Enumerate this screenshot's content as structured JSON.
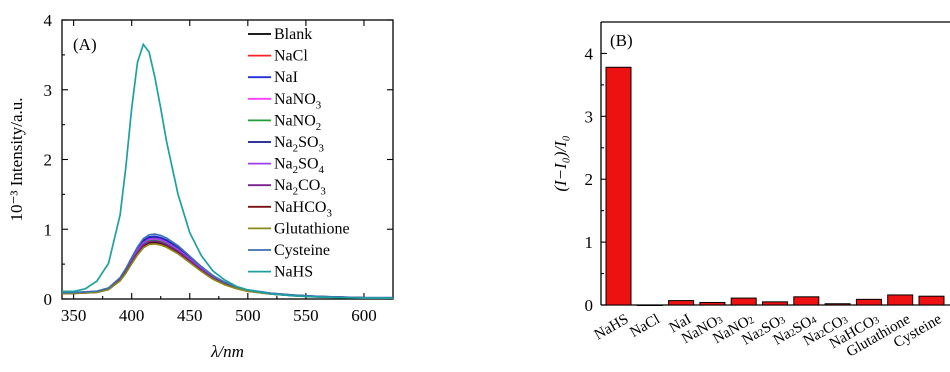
{
  "chart_data": [
    {
      "type": "line",
      "panel_label": "(A)",
      "xlabel": "λ/nm",
      "ylabel": "10⁻³ Intensity/a.u.",
      "xlim": [
        340,
        625
      ],
      "ylim": [
        0,
        4
      ],
      "xticks": [
        350,
        400,
        450,
        500,
        550,
        600
      ],
      "yticks": [
        0,
        1,
        2,
        3,
        4
      ],
      "legend_position": "top-right",
      "x": [
        340,
        350,
        360,
        370,
        380,
        390,
        395,
        400,
        405,
        410,
        415,
        420,
        425,
        430,
        440,
        450,
        460,
        470,
        480,
        490,
        500,
        520,
        540,
        560,
        580,
        600,
        625
      ],
      "shape": [
        0.1,
        0.1,
        0.11,
        0.12,
        0.17,
        0.33,
        0.47,
        0.64,
        0.8,
        0.93,
        0.99,
        1.0,
        0.98,
        0.94,
        0.82,
        0.66,
        0.5,
        0.36,
        0.26,
        0.19,
        0.14,
        0.09,
        0.06,
        0.04,
        0.03,
        0.02,
        0.02
      ],
      "nahs_shape": [
        0.03,
        0.03,
        0.04,
        0.07,
        0.14,
        0.33,
        0.52,
        0.75,
        0.93,
        1.0,
        0.97,
        0.87,
        0.75,
        0.62,
        0.41,
        0.26,
        0.17,
        0.11,
        0.075,
        0.05,
        0.035,
        0.02,
        0.012,
        0.008,
        0.005,
        0.004,
        0.003
      ],
      "series": [
        {
          "name": "Blank",
          "color": "#000000",
          "peak": 0.82
        },
        {
          "name": "NaCl",
          "color": "#ff2020",
          "peak": 0.85
        },
        {
          "name": "NaI",
          "color": "#1f2fd6",
          "peak": 0.9
        },
        {
          "name": "NaNO3",
          "label_base": "NaNO",
          "label_sub": "3",
          "color": "#ff3dff",
          "peak": 0.86
        },
        {
          "name": "NaNO2",
          "label_base": "NaNO",
          "label_sub": "2",
          "color": "#1f9e3a",
          "peak": 0.84
        },
        {
          "name": "Na2SO3",
          "color": "#121a8a",
          "peak": 0.88
        },
        {
          "name": "Na2SO4",
          "color": "#a23cf0",
          "peak": 0.87
        },
        {
          "name": "Na2CO3",
          "color": "#7a1f8c",
          "peak": 0.83
        },
        {
          "name": "NaHCO3",
          "label_base": "NaHCO",
          "label_sub": "3",
          "color": "#7a1010",
          "peak": 0.8
        },
        {
          "name": "Glutathione",
          "color": "#8a8a1a",
          "peak": 0.79
        },
        {
          "name": "Cysteine",
          "color": "#3e6fb0",
          "peak": 0.93
        },
        {
          "name": "NaHS",
          "color": "#1fa0a0",
          "peak": 3.65,
          "use_nahs_shape": true
        }
      ]
    },
    {
      "type": "bar",
      "panel_label": "(B)",
      "ylabel": "(I−I₀)/I₀",
      "ylim": [
        0,
        4.5
      ],
      "yticks": [
        0,
        1,
        2,
        3,
        4
      ],
      "bar_color": "#ee1111",
      "categories": [
        "NaHS",
        "NaCl",
        "NaI",
        "NaNO3",
        "NaNO2",
        "Na2SO3",
        "Na2SO4",
        "Na2CO3",
        "NaHCO3",
        "Glutathione",
        "Cysteine"
      ],
      "values": [
        3.78,
        0.0,
        0.07,
        0.04,
        0.11,
        0.05,
        0.13,
        0.02,
        0.09,
        0.16,
        0.14
      ]
    }
  ]
}
